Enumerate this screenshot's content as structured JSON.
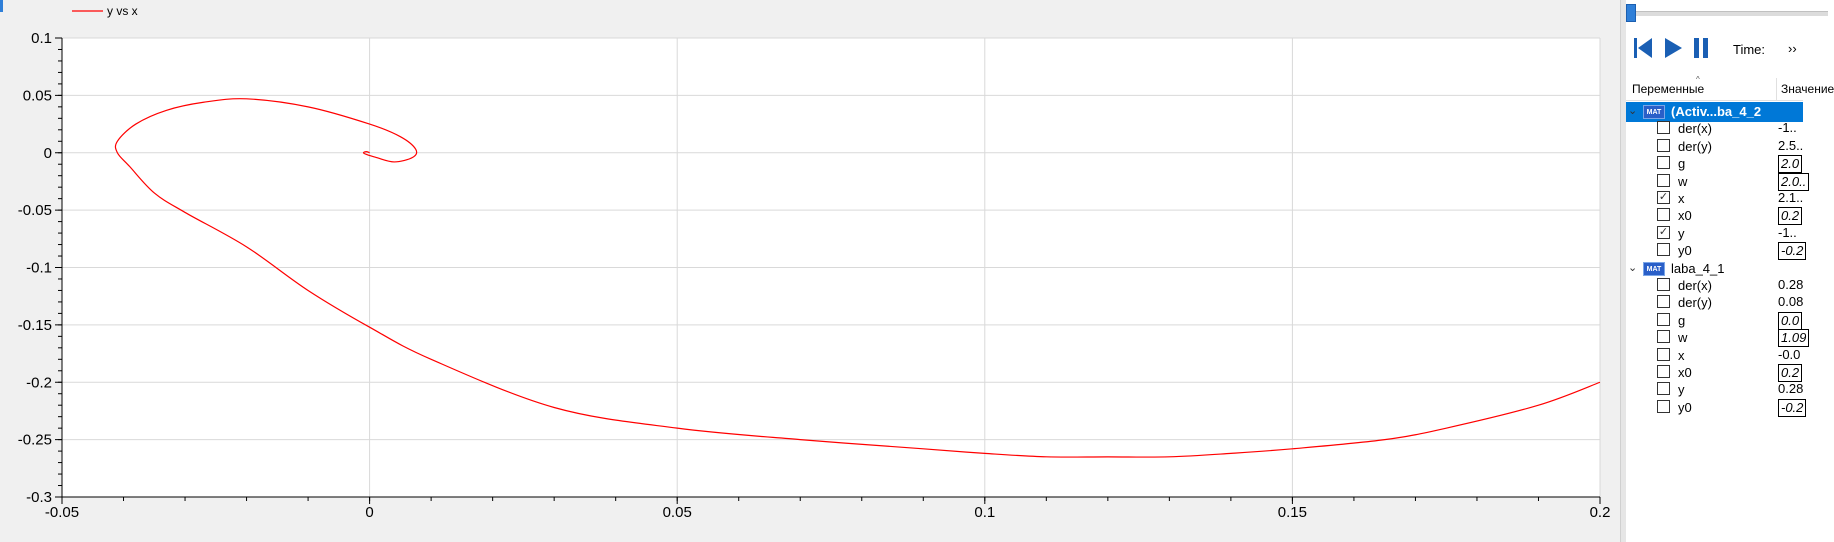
{
  "plot": {
    "legend_label": "y vs x",
    "colors": {
      "line": "#ff0000",
      "grid": "#d9d9d9",
      "axis": "#000000",
      "background": "#ffffff"
    }
  },
  "chart_data": {
    "type": "line",
    "title": "",
    "xlabel": "",
    "ylabel": "",
    "xlim": [
      -0.05,
      0.2
    ],
    "ylim": [
      -0.3,
      0.1
    ],
    "xticks": [
      "-0.05",
      "0",
      "0.05",
      "0.1",
      "0.15",
      "0.2"
    ],
    "yticks": [
      "0.1",
      "0.05",
      "0",
      "-0.05",
      "-0.1",
      "-0.15",
      "-0.2",
      "-0.25",
      "-0.3"
    ],
    "grid": true,
    "legend": "top-left",
    "series": [
      {
        "name": "y vs x",
        "x": [
          0.2,
          0.19,
          0.175,
          0.165,
          0.15,
          0.14,
          0.13,
          0.12,
          0.11,
          0.1,
          0.09,
          0.07,
          0.05,
          0.03,
          0.01,
          0.0,
          -0.01,
          -0.02,
          -0.03,
          -0.035,
          -0.039,
          -0.041,
          -0.041,
          -0.038,
          -0.033,
          -0.027,
          -0.02,
          -0.01,
          0.0,
          0.005,
          0.0075,
          0.007,
          0.004,
          0.001,
          -0.0005,
          -0.001,
          -0.0005,
          0.0
        ],
        "y": [
          -0.2,
          -0.22,
          -0.24,
          -0.25,
          -0.258,
          -0.262,
          -0.265,
          -0.265,
          -0.265,
          -0.262,
          -0.258,
          -0.25,
          -0.24,
          -0.222,
          -0.18,
          -0.152,
          -0.12,
          -0.082,
          -0.052,
          -0.035,
          -0.012,
          0.0,
          0.01,
          0.025,
          0.037,
          0.044,
          0.047,
          0.04,
          0.025,
          0.014,
          0.003,
          -0.004,
          -0.008,
          -0.004,
          -0.0015,
          0.0,
          0.001,
          0.0
        ]
      }
    ]
  },
  "toolbar": {
    "time_label": "Time:",
    "more_label": "››"
  },
  "variables": {
    "header_name": "Переменные",
    "header_value": "Значение",
    "groups": [
      {
        "label": "(Activ...ba_4_2",
        "icon": "mat-file-icon",
        "selected": true,
        "items": [
          {
            "name": "der(x)",
            "value": "-1..",
            "checked": false,
            "param": false
          },
          {
            "name": "der(y)",
            "value": "2.5..",
            "checked": false,
            "param": false
          },
          {
            "name": "g",
            "value": "2.0",
            "checked": false,
            "param": true
          },
          {
            "name": "w",
            "value": "2.0..",
            "checked": false,
            "param": true
          },
          {
            "name": "x",
            "value": "2.1..",
            "checked": true,
            "param": false
          },
          {
            "name": "x0",
            "value": "0.2",
            "checked": false,
            "param": true
          },
          {
            "name": "y",
            "value": "-1..",
            "checked": true,
            "param": false
          },
          {
            "name": "y0",
            "value": "-0.2",
            "checked": false,
            "param": true
          }
        ]
      },
      {
        "label": "laba_4_1",
        "icon": "mat-file-icon",
        "selected": false,
        "items": [
          {
            "name": "der(x)",
            "value": "0.28",
            "checked": false,
            "param": false
          },
          {
            "name": "der(y)",
            "value": "0.08",
            "checked": false,
            "param": false
          },
          {
            "name": "g",
            "value": "0.0",
            "checked": false,
            "param": true
          },
          {
            "name": "w",
            "value": "1.09",
            "checked": false,
            "param": true
          },
          {
            "name": "x",
            "value": "-0.0",
            "checked": false,
            "param": false
          },
          {
            "name": "x0",
            "value": "0.2",
            "checked": false,
            "param": true
          },
          {
            "name": "y",
            "value": "0.28",
            "checked": false,
            "param": false
          },
          {
            "name": "y0",
            "value": "-0.2",
            "checked": false,
            "param": true
          }
        ]
      }
    ]
  }
}
